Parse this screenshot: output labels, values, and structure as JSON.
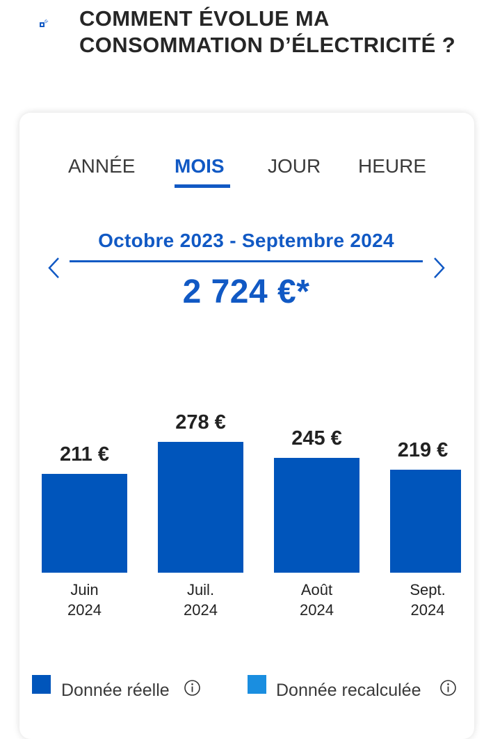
{
  "header": {
    "title": "COMMENT ÉVOLUE MA CONSOMMATION D’ÉLECTRICITÉ ?",
    "side_icon": "device-icon"
  },
  "tabs": [
    {
      "label": "ANNÉE",
      "active": false
    },
    {
      "label": "MOIS",
      "active": true
    },
    {
      "label": "JOUR",
      "active": false
    },
    {
      "label": "HEURE",
      "active": false
    }
  ],
  "period": {
    "label": "Octobre 2023 - Septembre 2024",
    "total": "2 724 €*",
    "prev_icon": "chevron-left-icon",
    "next_icon": "chevron-right-icon"
  },
  "chart_data": {
    "type": "bar",
    "categories": [
      "Juin 2024",
      "Juil. 2024",
      "Août 2024",
      "Sept. 2024"
    ],
    "category_lines": [
      [
        "Juin",
        "2024"
      ],
      [
        "Juil.",
        "2024"
      ],
      [
        "Août",
        "2024"
      ],
      [
        "Sept.",
        "2024"
      ]
    ],
    "values": [
      211,
      278,
      245,
      219
    ],
    "value_labels": [
      "211 €",
      "278 €",
      "245 €",
      "219 €"
    ],
    "unit": "€",
    "bar_color": "#0055bb"
  },
  "legend": [
    {
      "label": "Donnée réelle",
      "color": "#0055bb"
    },
    {
      "label": "Donnée recalculée",
      "color": "#1a8ee0"
    }
  ]
}
